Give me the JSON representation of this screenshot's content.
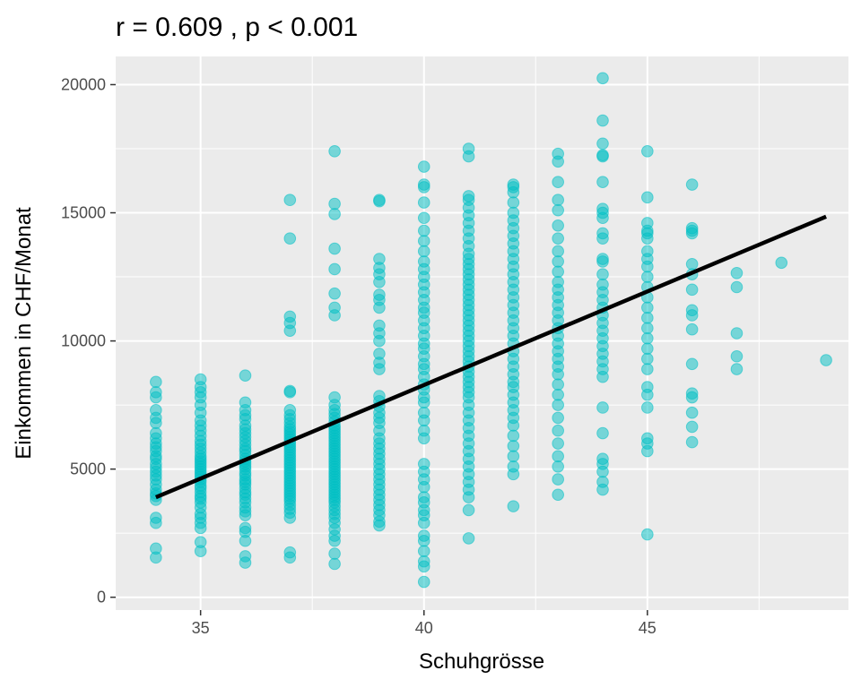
{
  "chart_data": {
    "type": "scatter",
    "title": "r = 0.609 , p < 0.001",
    "xlabel": "Schuhgrösse",
    "ylabel": "Einkommen in CHF/Monat",
    "xlim": [
      33.1,
      49.5
    ],
    "ylim": [
      -500,
      21100
    ],
    "x_ticks": [
      35,
      40,
      45
    ],
    "x_tick_labels": [
      "35",
      "40",
      "45"
    ],
    "y_ticks": [
      0,
      5000,
      10000,
      15000,
      20000
    ],
    "y_tick_labels": [
      "0",
      "5000",
      "10000",
      "15000",
      "20000"
    ],
    "grid": true,
    "colors": {
      "points": "#00BFC4",
      "line": "#000000",
      "panel": "#EBEBEB",
      "grid": "#FFFFFF"
    },
    "regression_line": {
      "x": [
        34,
        49
      ],
      "y": [
        3900,
        14850
      ]
    },
    "points": {
      "34": [
        1550,
        1900,
        2900,
        3100,
        3800,
        3950,
        4050,
        4200,
        4400,
        4600,
        4750,
        4900,
        5050,
        5200,
        5400,
        5500,
        5700,
        5850,
        6000,
        6200,
        6400,
        6800,
        7000,
        7300,
        7800,
        8000,
        8400
      ],
      "35": [
        1800,
        2150,
        2700,
        2900,
        3100,
        3250,
        3500,
        3700,
        3850,
        3950,
        4100,
        4250,
        4350,
        4500,
        4600,
        4700,
        4800,
        4900,
        5000,
        5100,
        5200,
        5300,
        5400,
        5500,
        5650,
        5800,
        5950,
        6100,
        6300,
        6500,
        6700,
        6900,
        7200,
        7500,
        7800,
        8000,
        8200,
        8500
      ],
      "36": [
        1350,
        1600,
        2200,
        2550,
        2700,
        3200,
        3350,
        3500,
        3700,
        3850,
        4000,
        4100,
        4250,
        4400,
        4500,
        4600,
        4750,
        4850,
        5000,
        5100,
        5200,
        5300,
        5400,
        5550,
        5700,
        5800,
        5950,
        6100,
        6250,
        6400,
        6550,
        6700,
        6950,
        7100,
        7300,
        7600,
        8650
      ],
      "37": [
        1550,
        1750,
        3100,
        3300,
        3450,
        3600,
        3750,
        3850,
        3950,
        4050,
        4150,
        4250,
        4350,
        4450,
        4550,
        4650,
        4750,
        4850,
        4950,
        5050,
        5150,
        5250,
        5350,
        5450,
        5550,
        5650,
        5750,
        5850,
        5950,
        6050,
        6150,
        6250,
        6350,
        6450,
        6550,
        6650,
        6800,
        6950,
        7100,
        7300,
        8000,
        8050,
        10400,
        10700,
        10950,
        14000,
        15500
      ],
      "38": [
        1300,
        1700,
        2200,
        2400,
        2650,
        2900,
        3100,
        3250,
        3400,
        3550,
        3700,
        3800,
        3900,
        4000,
        4100,
        4200,
        4300,
        4400,
        4500,
        4600,
        4700,
        4800,
        4900,
        5000,
        5100,
        5200,
        5300,
        5400,
        5500,
        5600,
        5700,
        5800,
        5900,
        6000,
        6100,
        6200,
        6300,
        6400,
        6500,
        6600,
        6700,
        6850,
        7000,
        7150,
        7300,
        7500,
        7800,
        11000,
        11300,
        11850,
        12800,
        13600,
        14950,
        15350,
        17400
      ],
      "39": [
        2800,
        2950,
        3200,
        3400,
        3600,
        3800,
        4000,
        4200,
        4400,
        4600,
        4800,
        5000,
        5200,
        5400,
        5600,
        5800,
        6000,
        6200,
        6500,
        6800,
        7000,
        7200,
        7450,
        7650,
        7850,
        8900,
        9150,
        9500,
        10000,
        10300,
        10600,
        11300,
        11600,
        11800,
        12300,
        12600,
        12850,
        13200,
        15450,
        15500
      ],
      "40": [
        600,
        1200,
        1400,
        1800,
        2200,
        2400,
        2900,
        3200,
        3400,
        3700,
        3900,
        4300,
        4600,
        4900,
        5200,
        6200,
        6500,
        6900,
        7200,
        7600,
        7800,
        8100,
        8300,
        8600,
        8900,
        9100,
        9400,
        9700,
        9900,
        10200,
        10500,
        10800,
        11100,
        11300,
        11600,
        11900,
        12200,
        12500,
        12800,
        13100,
        13500,
        13900,
        14300,
        14800,
        15400,
        16000,
        16100,
        16800
      ],
      "41": [
        2300,
        3400,
        3900,
        4200,
        4500,
        4800,
        5100,
        5400,
        5700,
        6000,
        6300,
        6600,
        6900,
        7200,
        7500,
        7800,
        8000,
        8200,
        8400,
        8600,
        8800,
        9000,
        9200,
        9400,
        9600,
        9800,
        10000,
        10200,
        10400,
        10600,
        10800,
        11000,
        11200,
        11400,
        11600,
        11800,
        12000,
        12200,
        12400,
        12600,
        12800,
        13000,
        13200,
        13400,
        13700,
        14000,
        14300,
        14600,
        14900,
        15200,
        15500,
        15650,
        17200,
        17500
      ],
      "42": [
        3550,
        4800,
        5100,
        5500,
        5900,
        6300,
        6700,
        7000,
        7300,
        7600,
        7900,
        8200,
        8400,
        8700,
        9000,
        9300,
        9600,
        9900,
        10200,
        10500,
        10800,
        11100,
        11400,
        11700,
        12000,
        12300,
        12600,
        12900,
        13200,
        13500,
        13800,
        14100,
        14400,
        14700,
        15000,
        15400,
        15800,
        16000,
        16100
      ],
      "43": [
        4000,
        4600,
        5100,
        5500,
        6000,
        6500,
        7000,
        7500,
        7900,
        8300,
        8700,
        9000,
        9300,
        9600,
        9900,
        10200,
        10500,
        10800,
        11100,
        11400,
        11700,
        12000,
        12300,
        12700,
        13100,
        13500,
        14000,
        14500,
        15100,
        15500,
        16200,
        17000,
        17300
      ],
      "44": [
        4200,
        4500,
        4900,
        5200,
        5400,
        6400,
        7400,
        8600,
        8900,
        9200,
        9500,
        9800,
        10100,
        10400,
        10700,
        11000,
        11300,
        11600,
        11900,
        12200,
        12600,
        13100,
        13200,
        14000,
        14200,
        14800,
        15000,
        15150,
        16200,
        17200,
        17250,
        17700,
        18600,
        20250
      ],
      "45": [
        2450,
        5700,
        6000,
        6200,
        7400,
        7900,
        8200,
        8900,
        9300,
        9700,
        10100,
        10500,
        10900,
        11300,
        11700,
        12100,
        12500,
        12900,
        13200,
        13500,
        14000,
        14200,
        14300,
        14600,
        15600,
        17400
      ],
      "46": [
        6050,
        6650,
        7200,
        7800,
        7950,
        9100,
        10450,
        11000,
        11200,
        12000,
        12600,
        13000,
        14200,
        14300,
        14400,
        16100
      ],
      "47": [
        8900,
        9400,
        10300,
        12100,
        12650
      ],
      "48": [
        13050
      ],
      "49": [
        9250
      ]
    }
  }
}
